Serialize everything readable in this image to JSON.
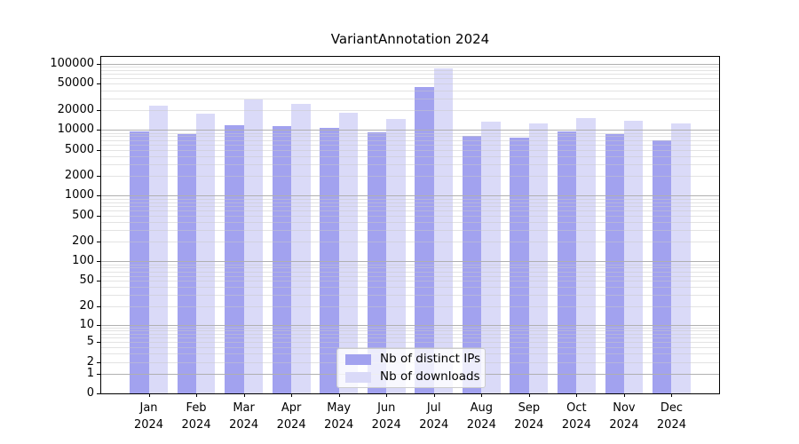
{
  "chart_data": {
    "type": "bar",
    "title": "VariantAnnotation 2024",
    "categories": [
      "Jan 2024",
      "Feb 2024",
      "Mar 2024",
      "Apr 2024",
      "May 2024",
      "Jun 2024",
      "Jul 2024",
      "Aug 2024",
      "Sep 2024",
      "Oct 2024",
      "Nov 2024",
      "Dec 2024"
    ],
    "series": [
      {
        "name": "Nb of distinct IPs",
        "color": "#a2a2ef",
        "values": [
          9500,
          8700,
          11800,
          11500,
          10800,
          9200,
          44800,
          8100,
          7700,
          9400,
          8700,
          7000
        ]
      },
      {
        "name": "Nb of downloads",
        "color": "#dadaf8",
        "values": [
          23300,
          17700,
          29000,
          24800,
          18200,
          14700,
          85700,
          13400,
          12600,
          15100,
          13800,
          12600
        ]
      }
    ],
    "xlabel": "",
    "ylabel": "",
    "y_axis": {
      "scale": "log10(1+y)",
      "ticks": [
        100000,
        50000,
        20000,
        10000,
        5000,
        2000,
        1000,
        500,
        200,
        100,
        50,
        20,
        10,
        5,
        2,
        1,
        0
      ],
      "range": [
        0,
        132000
      ]
    },
    "grid": {
      "enabled": true,
      "major_color": "#b0b0b0",
      "minor_color_rgba": "rgba(200,200,200,0.5)"
    },
    "legend": {
      "position": "lower center"
    },
    "axis_color": "#000000",
    "background_color": "#ffffff"
  }
}
